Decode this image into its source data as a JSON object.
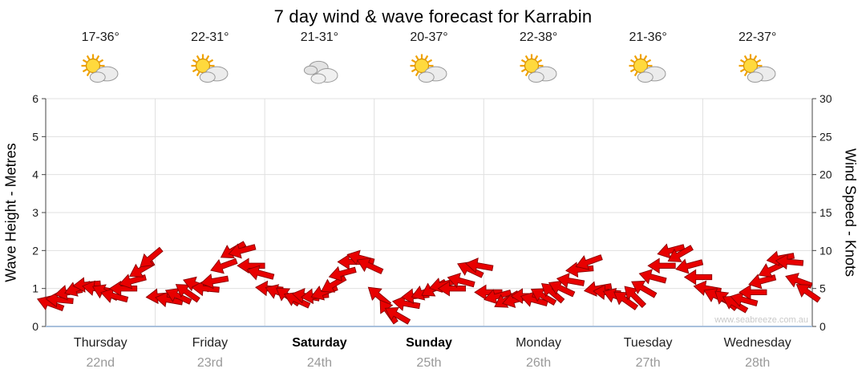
{
  "title": "7 day wind & wave forecast for Karrabin",
  "watermark": "www.seabreeze.com.au",
  "colors": {
    "arrow_fill": "#e80000",
    "arrow_outline": "#8b0000",
    "grid": "#e0e0e0",
    "axis_line": "#444444",
    "baseline_blue": "#a9c0dc",
    "date_text": "#999999"
  },
  "axes": {
    "left_label": "Wave Height - Metres",
    "right_label": "Wind Speed - Knots",
    "left_ticks": [
      0,
      1,
      2,
      3,
      4,
      5,
      6
    ],
    "right_ticks": [
      0,
      5,
      10,
      15,
      20,
      25,
      30
    ],
    "left_range": [
      0,
      6
    ],
    "right_range": [
      0,
      30
    ]
  },
  "days": [
    {
      "name": "Thursday",
      "date": "22nd",
      "temp": "17-36°",
      "icon": "sun-cloud",
      "weekend": false
    },
    {
      "name": "Friday",
      "date": "23rd",
      "temp": "22-31°",
      "icon": "sun-cloud",
      "weekend": false
    },
    {
      "name": "Saturday",
      "date": "24th",
      "temp": "21-31°",
      "icon": "cloudy",
      "weekend": true
    },
    {
      "name": "Sunday",
      "date": "25th",
      "temp": "20-37°",
      "icon": "sun-cloud",
      "weekend": true
    },
    {
      "name": "Monday",
      "date": "26th",
      "temp": "22-38°",
      "icon": "sun-cloud",
      "weekend": false
    },
    {
      "name": "Tuesday",
      "date": "27th",
      "temp": "21-36°",
      "icon": "sun-cloud",
      "weekend": false
    },
    {
      "name": "Wednesday",
      "date": "28th",
      "temp": "22-37°",
      "icon": "sun-cloud",
      "weekend": false
    }
  ],
  "chart_data": {
    "type": "scatter",
    "title": "7 day wind & wave forecast for Karrabin",
    "categories": [
      "Thursday 22nd",
      "Friday 23rd",
      "Saturday 24th",
      "Sunday 25th",
      "Monday 26th",
      "Tuesday 27th",
      "Wednesday 28th"
    ],
    "samples_per_day": 12,
    "ylabel_left": "Wave Height - Metres",
    "ylim_left": [
      0,
      6
    ],
    "ylabel_right": "Wind Speed - Knots",
    "ylim_right": [
      0,
      30
    ],
    "grid": true,
    "series": [
      {
        "name": "Wind speed (knots)",
        "style": "red direction arrows",
        "values": [
          3,
          3.5,
          4.5,
          5,
          5.5,
          5,
          4.5,
          4,
          5,
          6,
          7.5,
          9,
          4,
          3.5,
          4,
          4.5,
          5.5,
          5,
          6,
          8,
          10,
          10,
          8,
          7,
          5,
          4.5,
          4,
          3.5,
          4,
          4,
          4.5,
          5.5,
          7,
          8.5,
          9,
          8,
          4,
          2,
          1.5,
          3,
          4,
          4.5,
          5,
          5.5,
          5,
          6,
          7.5,
          8,
          4.5,
          4,
          3.5,
          3.5,
          4,
          3.5,
          4,
          4.5,
          5,
          6,
          7.5,
          8.5,
          5,
          4.5,
          4,
          3.5,
          4,
          5,
          6.5,
          8,
          10,
          9.5,
          8,
          6.5,
          5,
          4,
          3.5,
          3,
          3.5,
          4.5,
          6,
          7.5,
          9,
          8.5,
          6,
          4.5
        ]
      },
      {
        "name": "Wind direction (screen angle deg, 0=east cw)",
        "values": [
          200,
          185,
          170,
          160,
          175,
          190,
          205,
          195,
          180,
          165,
          150,
          140,
          175,
          190,
          205,
          215,
          200,
          185,
          170,
          160,
          150,
          165,
          180,
          195,
          185,
          200,
          215,
          205,
          190,
          175,
          160,
          150,
          165,
          180,
          195,
          205,
          220,
          235,
          210,
          190,
          175,
          160,
          150,
          165,
          180,
          195,
          205,
          190,
          180,
          165,
          150,
          165,
          180,
          195,
          210,
          220,
          205,
          190,
          175,
          160,
          170,
          185,
          200,
          215,
          225,
          210,
          195,
          180,
          165,
          150,
          165,
          180,
          190,
          205,
          220,
          210,
          195,
          180,
          165,
          155,
          170,
          185,
          200,
          215
        ]
      },
      {
        "name": "Wave height (m)",
        "style": "flat light-blue line along zero",
        "constant": 0.05
      }
    ]
  }
}
